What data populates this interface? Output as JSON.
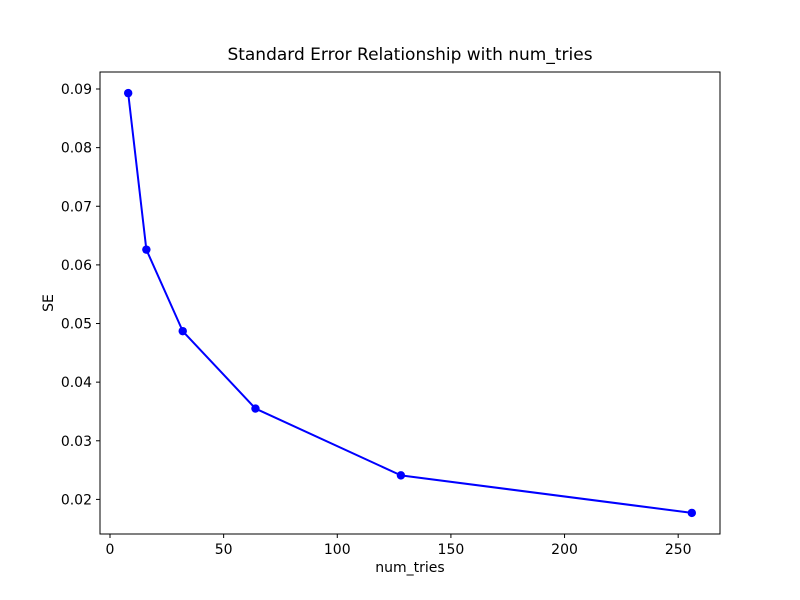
{
  "figure": {
    "background_color": "#ffffff",
    "axis_color": "#000000",
    "text_color": "#000000"
  },
  "chart_data": {
    "type": "line",
    "title": "Standard Error Relationship with num_tries",
    "xlabel": "num_tries",
    "ylabel": "SE",
    "x": [
      8,
      16,
      32,
      64,
      128,
      256
    ],
    "y": [
      0.0893,
      0.0626,
      0.0487,
      0.0355,
      0.0241,
      0.0177
    ],
    "xlim": [
      -4.4,
      268.4
    ],
    "ylim": [
      0.0141,
      0.0929
    ],
    "x_ticks": [
      0,
      50,
      100,
      150,
      200,
      250
    ],
    "x_tick_labels": [
      "0",
      "50",
      "100",
      "150",
      "200",
      "250"
    ],
    "y_ticks": [
      0.02,
      0.03,
      0.04,
      0.05,
      0.06,
      0.07,
      0.08,
      0.09
    ],
    "y_tick_labels": [
      "0.02",
      "0.03",
      "0.04",
      "0.05",
      "0.06",
      "0.07",
      "0.08",
      "0.09"
    ],
    "line_color": "#0000ff",
    "marker_color": "#0000ff",
    "marker": "circle",
    "grid": false,
    "legend": "none"
  }
}
